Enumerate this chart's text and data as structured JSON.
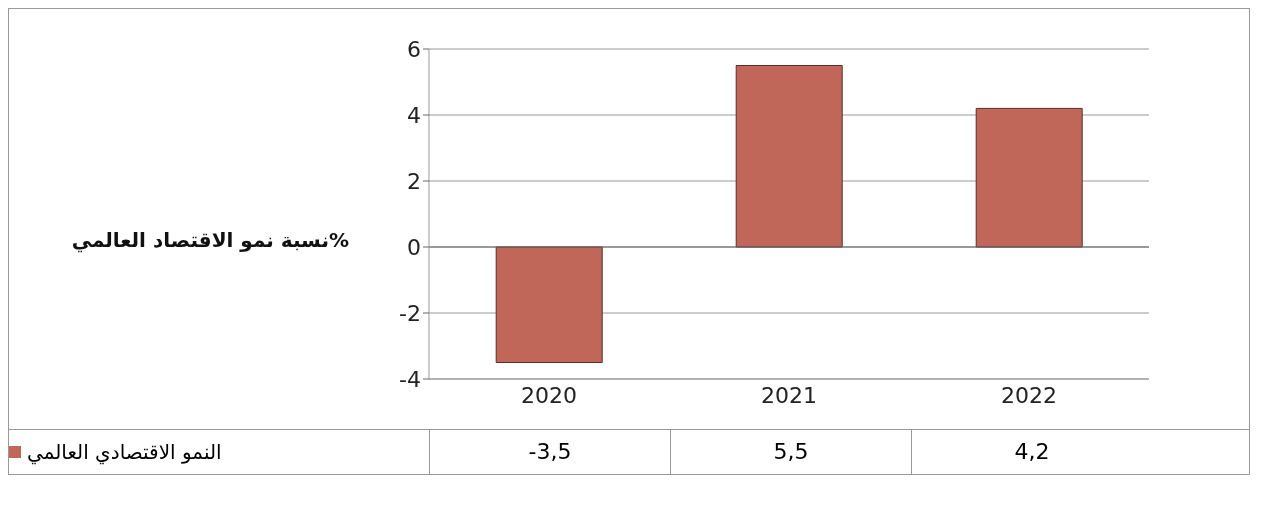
{
  "chart_data": {
    "type": "bar",
    "ylabel": "نسبة نمو الاقتصاد العالمي%",
    "categories": [
      "2020",
      "2021",
      "2022"
    ],
    "series": [
      {
        "name": "النمو الاقتصادي العالمي",
        "color": "#c0675a",
        "values": [
          -3.5,
          5.5,
          4.2
        ],
        "value_labels": [
          "-3,5",
          "5,5",
          "4,2"
        ]
      }
    ],
    "ylim": [
      -4,
      6
    ],
    "yticks": [
      -4,
      -2,
      0,
      2,
      4,
      6
    ],
    "grid": "y",
    "legend": "bottom"
  }
}
